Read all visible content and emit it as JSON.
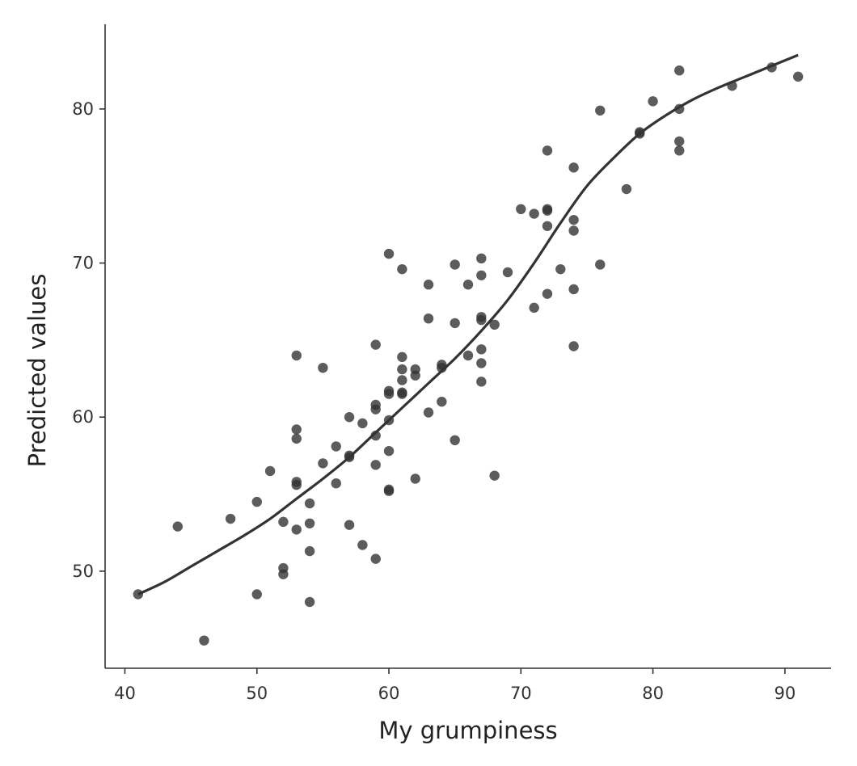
{
  "chart_data": {
    "type": "scatter",
    "xlabel": "My grumpiness",
    "ylabel": "Predicted values",
    "xlim": [
      38.5,
      93.5
    ],
    "ylim": [
      43.7,
      85.5
    ],
    "x_ticks": [
      40,
      50,
      60,
      70,
      80,
      90
    ],
    "y_ticks": [
      50,
      60,
      70,
      80
    ],
    "grid": false,
    "legend": "none",
    "point_color": "#333333",
    "line_color": "#333333",
    "points": [
      [
        41,
        48.5
      ],
      [
        44,
        52.9
      ],
      [
        46,
        45.5
      ],
      [
        48,
        53.4
      ],
      [
        50,
        54.5
      ],
      [
        50,
        48.5
      ],
      [
        51,
        56.5
      ],
      [
        52,
        53.2
      ],
      [
        52,
        50.2
      ],
      [
        52,
        49.8
      ],
      [
        53,
        64.0
      ],
      [
        53,
        59.2
      ],
      [
        53,
        58.6
      ],
      [
        53,
        55.8
      ],
      [
        53,
        55.6
      ],
      [
        53,
        52.7
      ],
      [
        54,
        54.4
      ],
      [
        54,
        53.1
      ],
      [
        54,
        51.3
      ],
      [
        54,
        48.0
      ],
      [
        55,
        63.2
      ],
      [
        55,
        57.0
      ],
      [
        56,
        58.1
      ],
      [
        56,
        55.7
      ],
      [
        57,
        60.0
      ],
      [
        57,
        57.5
      ],
      [
        57,
        57.4
      ],
      [
        57,
        53.0
      ],
      [
        58,
        59.6
      ],
      [
        58,
        51.7
      ],
      [
        59,
        64.7
      ],
      [
        59,
        60.8
      ],
      [
        59,
        60.5
      ],
      [
        59,
        58.8
      ],
      [
        59,
        56.9
      ],
      [
        59,
        50.8
      ],
      [
        60,
        70.6
      ],
      [
        60,
        61.7
      ],
      [
        60,
        61.5
      ],
      [
        60,
        59.8
      ],
      [
        60,
        57.8
      ],
      [
        60,
        55.3
      ],
      [
        60,
        55.2
      ],
      [
        61,
        69.6
      ],
      [
        61,
        63.9
      ],
      [
        61,
        63.1
      ],
      [
        61,
        62.4
      ],
      [
        61,
        61.6
      ],
      [
        61,
        61.5
      ],
      [
        62,
        63.1
      ],
      [
        62,
        62.7
      ],
      [
        62,
        56.0
      ],
      [
        63,
        68.6
      ],
      [
        63,
        66.4
      ],
      [
        63,
        60.3
      ],
      [
        64,
        63.4
      ],
      [
        64,
        63.2
      ],
      [
        64,
        61.0
      ],
      [
        65,
        69.9
      ],
      [
        65,
        66.1
      ],
      [
        65,
        58.5
      ],
      [
        66,
        68.6
      ],
      [
        66,
        64.0
      ],
      [
        67,
        70.3
      ],
      [
        67,
        69.2
      ],
      [
        67,
        66.5
      ],
      [
        67,
        66.3
      ],
      [
        67,
        64.4
      ],
      [
        67,
        63.5
      ],
      [
        67,
        62.3
      ],
      [
        68,
        66.0
      ],
      [
        68,
        56.2
      ],
      [
        69,
        69.4
      ],
      [
        70,
        73.5
      ],
      [
        71,
        73.2
      ],
      [
        71,
        67.1
      ],
      [
        72,
        77.3
      ],
      [
        72,
        73.5
      ],
      [
        72,
        73.4
      ],
      [
        72,
        72.4
      ],
      [
        72,
        68.0
      ],
      [
        73,
        69.6
      ],
      [
        74,
        76.2
      ],
      [
        74,
        72.8
      ],
      [
        74,
        72.1
      ],
      [
        74,
        68.3
      ],
      [
        74,
        64.6
      ],
      [
        76,
        79.9
      ],
      [
        76,
        69.9
      ],
      [
        78,
        74.8
      ],
      [
        79,
        78.5
      ],
      [
        79,
        78.4
      ],
      [
        80,
        80.5
      ],
      [
        82,
        82.5
      ],
      [
        82,
        80.0
      ],
      [
        82,
        77.9
      ],
      [
        82,
        77.3
      ],
      [
        86,
        81.5
      ],
      [
        89,
        82.7
      ],
      [
        91,
        82.1
      ]
    ],
    "fit_line": [
      [
        41,
        48.5
      ],
      [
        43,
        49.3
      ],
      [
        45,
        50.3
      ],
      [
        47,
        51.3
      ],
      [
        49,
        52.3
      ],
      [
        51,
        53.4
      ],
      [
        53,
        54.7
      ],
      [
        55,
        56.0
      ],
      [
        57,
        57.4
      ],
      [
        59,
        59.0
      ],
      [
        61,
        60.6
      ],
      [
        63,
        62.2
      ],
      [
        65,
        63.8
      ],
      [
        67,
        65.6
      ],
      [
        69,
        67.6
      ],
      [
        71,
        70.0
      ],
      [
        73,
        72.6
      ],
      [
        75,
        75.0
      ],
      [
        77,
        76.8
      ],
      [
        79,
        78.4
      ],
      [
        81,
        79.6
      ],
      [
        83,
        80.6
      ],
      [
        85,
        81.4
      ],
      [
        87,
        82.1
      ],
      [
        89,
        82.8
      ],
      [
        91,
        83.5
      ]
    ]
  }
}
